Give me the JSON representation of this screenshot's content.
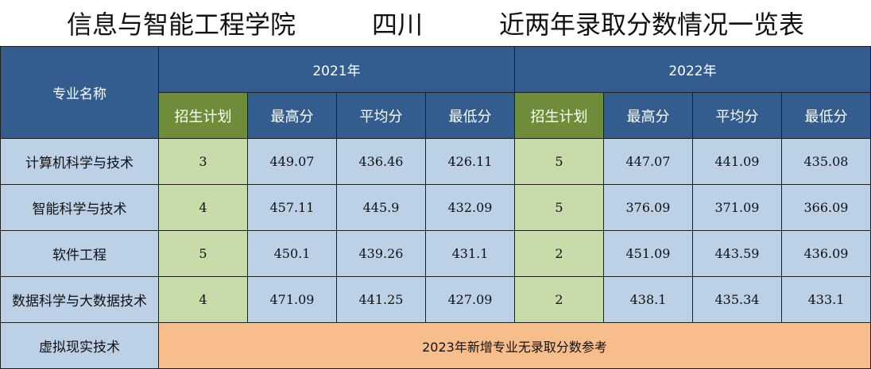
{
  "title": "信息与智能工程学院　　　四川　　　近两年录取分数情况一览表",
  "header": {
    "major_label": "专业名称",
    "year1": "2021年",
    "year2": "2022年",
    "cols": [
      "招生计划",
      "最高分",
      "平均分",
      "最低分"
    ]
  },
  "rows": [
    {
      "name": "计算机科学与技术",
      "y1": [
        "3",
        "449.07",
        "436.46",
        "426.11"
      ],
      "y2": [
        "5",
        "447.07",
        "441.09",
        "435.08"
      ]
    },
    {
      "name": "智能科学与技术",
      "y1": [
        "4",
        "457.11",
        "445.9",
        "432.09"
      ],
      "y2": [
        "5",
        "376.09",
        "371.09",
        "366.09"
      ]
    },
    {
      "name": "软件工程",
      "y1": [
        "5",
        "450.1",
        "439.26",
        "431.1"
      ],
      "y2": [
        "2",
        "451.09",
        "443.59",
        "436.09"
      ]
    },
    {
      "name": "数据科学与大数据技术",
      "y1": [
        "4",
        "471.09",
        "441.25",
        "427.09"
      ],
      "y2": [
        "2",
        "438.1",
        "435.34",
        "433.1"
      ]
    }
  ],
  "last_row": {
    "name": "虚拟现实技术",
    "note": "2023年新增专业无录取分数参考"
  },
  "colors": {
    "header_blue": "#335d8f",
    "plan_header_green": "#6e8c3a",
    "plan_cell_green": "#c8dcaa",
    "cell_blue": "#bcd0e6",
    "note_orange": "#f7bd8b"
  }
}
